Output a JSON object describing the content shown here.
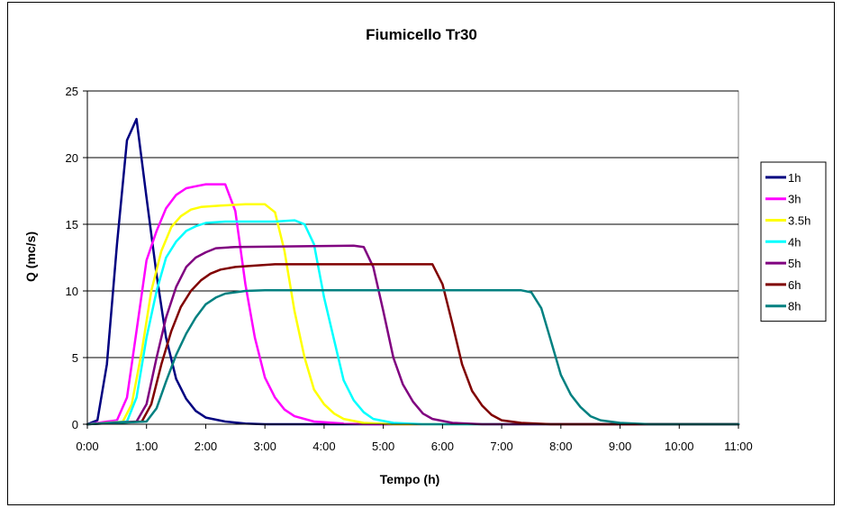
{
  "chart_data": {
    "type": "line",
    "title": "Fiumicello Tr30",
    "xlabel": "Tempo (h)",
    "ylabel": "Q (mc/s)",
    "x_unit": "hours",
    "xlim": [
      0,
      11
    ],
    "ylim": [
      0,
      25
    ],
    "x_ticks": [
      0,
      1,
      2,
      3,
      4,
      5,
      6,
      7,
      8,
      9,
      10,
      11
    ],
    "x_tick_labels": [
      "0:00",
      "1:00",
      "2:00",
      "3:00",
      "4:00",
      "5:00",
      "6:00",
      "7:00",
      "8:00",
      "9:00",
      "10:00",
      "11:00"
    ],
    "y_ticks": [
      0,
      5,
      10,
      15,
      20,
      25
    ],
    "y_tick_labels": [
      "0",
      "5",
      "10",
      "15",
      "20",
      "25"
    ],
    "grid": true,
    "legend_position": "right",
    "series": [
      {
        "name": "1h",
        "color": "#000080",
        "points": [
          [
            0,
            0
          ],
          [
            0.17,
            0.3
          ],
          [
            0.33,
            4.5
          ],
          [
            0.5,
            13.5
          ],
          [
            0.67,
            21.3
          ],
          [
            0.83,
            22.9
          ],
          [
            1.0,
            17.0
          ],
          [
            1.17,
            11.2
          ],
          [
            1.33,
            6.5
          ],
          [
            1.5,
            3.4
          ],
          [
            1.67,
            1.9
          ],
          [
            1.83,
            1.0
          ],
          [
            2.0,
            0.5
          ],
          [
            2.33,
            0.2
          ],
          [
            2.67,
            0.05
          ],
          [
            3.0,
            0
          ],
          [
            11.0,
            0
          ]
        ]
      },
      {
        "name": "3h",
        "color": "#FF00FF",
        "points": [
          [
            0,
            0
          ],
          [
            0.5,
            0.3
          ],
          [
            0.67,
            2.0
          ],
          [
            0.83,
            7.0
          ],
          [
            1.0,
            12.3
          ],
          [
            1.17,
            14.5
          ],
          [
            1.33,
            16.2
          ],
          [
            1.5,
            17.2
          ],
          [
            1.67,
            17.7
          ],
          [
            1.83,
            17.85
          ],
          [
            2.0,
            18.0
          ],
          [
            2.33,
            18.0
          ],
          [
            2.5,
            16.0
          ],
          [
            2.67,
            10.5
          ],
          [
            2.83,
            6.5
          ],
          [
            3.0,
            3.5
          ],
          [
            3.17,
            2.0
          ],
          [
            3.33,
            1.1
          ],
          [
            3.5,
            0.6
          ],
          [
            3.83,
            0.2
          ],
          [
            4.33,
            0.05
          ],
          [
            4.83,
            0
          ],
          [
            11.0,
            0
          ]
        ]
      },
      {
        "name": "3.5h",
        "color": "#FFFF00",
        "points": [
          [
            0,
            0
          ],
          [
            0.6,
            0.2
          ],
          [
            0.75,
            1.5
          ],
          [
            0.92,
            5.5
          ],
          [
            1.08,
            10.0
          ],
          [
            1.25,
            13.0
          ],
          [
            1.42,
            14.8
          ],
          [
            1.58,
            15.6
          ],
          [
            1.75,
            16.1
          ],
          [
            1.92,
            16.3
          ],
          [
            2.25,
            16.4
          ],
          [
            2.67,
            16.5
          ],
          [
            3.0,
            16.5
          ],
          [
            3.17,
            15.9
          ],
          [
            3.33,
            13.0
          ],
          [
            3.5,
            8.5
          ],
          [
            3.67,
            5.0
          ],
          [
            3.83,
            2.6
          ],
          [
            4.0,
            1.5
          ],
          [
            4.17,
            0.8
          ],
          [
            4.33,
            0.4
          ],
          [
            4.67,
            0.1
          ],
          [
            5.17,
            0
          ],
          [
            11.0,
            0
          ]
        ]
      },
      {
        "name": "4h",
        "color": "#00FFFF",
        "points": [
          [
            0,
            0
          ],
          [
            0.67,
            0.2
          ],
          [
            0.83,
            2.0
          ],
          [
            1.0,
            6.5
          ],
          [
            1.17,
            10.0
          ],
          [
            1.33,
            12.5
          ],
          [
            1.5,
            13.7
          ],
          [
            1.67,
            14.5
          ],
          [
            1.83,
            14.85
          ],
          [
            2.0,
            15.1
          ],
          [
            2.33,
            15.2
          ],
          [
            3.17,
            15.2
          ],
          [
            3.5,
            15.3
          ],
          [
            3.67,
            15.0
          ],
          [
            3.83,
            13.5
          ],
          [
            4.0,
            9.5
          ],
          [
            4.17,
            6.3
          ],
          [
            4.33,
            3.3
          ],
          [
            4.5,
            1.8
          ],
          [
            4.67,
            0.9
          ],
          [
            4.83,
            0.4
          ],
          [
            5.17,
            0.1
          ],
          [
            5.67,
            0
          ],
          [
            11.0,
            0
          ]
        ]
      },
      {
        "name": "5h",
        "color": "#800080",
        "points": [
          [
            0,
            0
          ],
          [
            0.83,
            0.2
          ],
          [
            1.0,
            1.5
          ],
          [
            1.17,
            5.0
          ],
          [
            1.33,
            8.0
          ],
          [
            1.5,
            10.3
          ],
          [
            1.67,
            11.8
          ],
          [
            1.83,
            12.5
          ],
          [
            2.0,
            12.9
          ],
          [
            2.17,
            13.2
          ],
          [
            2.5,
            13.3
          ],
          [
            4.5,
            13.4
          ],
          [
            4.67,
            13.3
          ],
          [
            4.83,
            11.8
          ],
          [
            5.0,
            8.5
          ],
          [
            5.17,
            5.0
          ],
          [
            5.33,
            3.0
          ],
          [
            5.5,
            1.7
          ],
          [
            5.67,
            0.8
          ],
          [
            5.83,
            0.4
          ],
          [
            6.17,
            0.1
          ],
          [
            6.67,
            0
          ],
          [
            11.0,
            0
          ]
        ]
      },
      {
        "name": "6h",
        "color": "#800000",
        "points": [
          [
            0,
            0
          ],
          [
            0.92,
            0.2
          ],
          [
            1.08,
            1.5
          ],
          [
            1.25,
            4.5
          ],
          [
            1.42,
            7.0
          ],
          [
            1.58,
            8.8
          ],
          [
            1.75,
            10.0
          ],
          [
            1.92,
            10.8
          ],
          [
            2.08,
            11.3
          ],
          [
            2.25,
            11.6
          ],
          [
            2.5,
            11.8
          ],
          [
            2.83,
            11.9
          ],
          [
            3.17,
            12.0
          ],
          [
            5.83,
            12.0
          ],
          [
            6.0,
            10.5
          ],
          [
            6.17,
            7.5
          ],
          [
            6.33,
            4.5
          ],
          [
            6.5,
            2.5
          ],
          [
            6.67,
            1.4
          ],
          [
            6.83,
            0.7
          ],
          [
            7.0,
            0.3
          ],
          [
            7.33,
            0.1
          ],
          [
            7.83,
            0
          ],
          [
            11.0,
            0
          ]
        ]
      },
      {
        "name": "8h",
        "color": "#008080",
        "points": [
          [
            0,
            0
          ],
          [
            1.0,
            0.2
          ],
          [
            1.17,
            1.2
          ],
          [
            1.33,
            3.2
          ],
          [
            1.5,
            5.2
          ],
          [
            1.67,
            6.8
          ],
          [
            1.83,
            8.0
          ],
          [
            2.0,
            9.0
          ],
          [
            2.17,
            9.5
          ],
          [
            2.33,
            9.8
          ],
          [
            2.67,
            10.0
          ],
          [
            3.0,
            10.05
          ],
          [
            7.33,
            10.05
          ],
          [
            7.5,
            9.9
          ],
          [
            7.67,
            8.7
          ],
          [
            7.83,
            6.3
          ],
          [
            8.0,
            3.7
          ],
          [
            8.17,
            2.2
          ],
          [
            8.33,
            1.3
          ],
          [
            8.5,
            0.6
          ],
          [
            8.67,
            0.3
          ],
          [
            9.0,
            0.1
          ],
          [
            9.5,
            0
          ],
          [
            11.0,
            0
          ]
        ]
      }
    ]
  }
}
